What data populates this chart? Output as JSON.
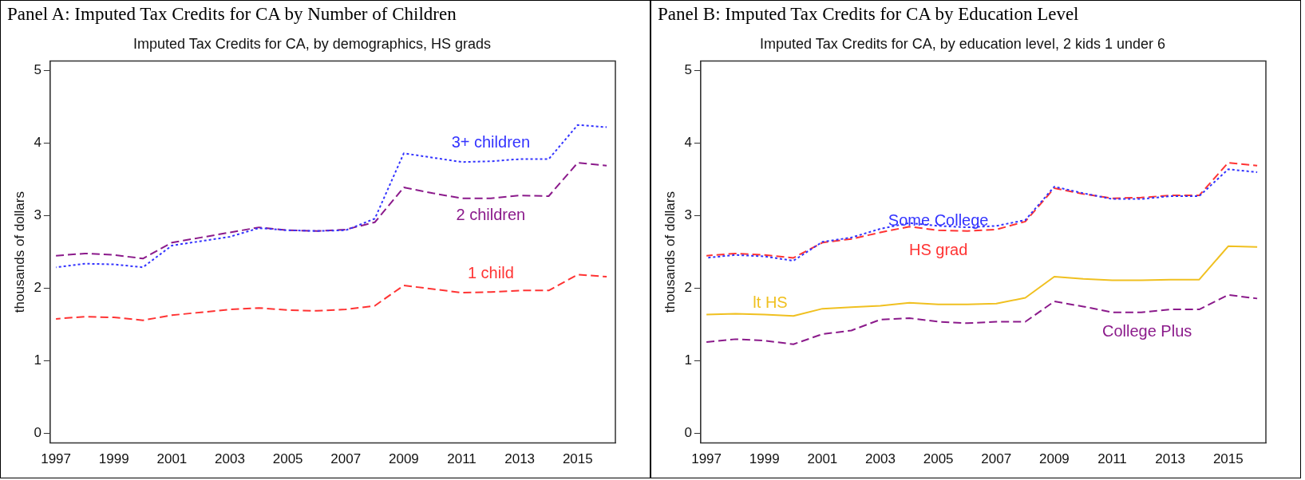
{
  "chart_data": [
    {
      "type": "line",
      "title": "Panel A: Imputed Tax Credits for CA by Number of Children",
      "subtitle": "Imputed Tax Credits for CA, by demographics, HS grads",
      "ylabel": "thousands of dollars",
      "x": [
        1997,
        1998,
        1999,
        2000,
        2001,
        2002,
        2003,
        2004,
        2005,
        2006,
        2007,
        2008,
        2009,
        2010,
        2011,
        2012,
        2013,
        2014,
        2015,
        2016
      ],
      "series": [
        {
          "name": "3+ children",
          "color": "#3333ff",
          "line_style": "dotted",
          "values": [
            2.29,
            2.34,
            2.33,
            2.29,
            2.59,
            2.65,
            2.71,
            2.83,
            2.8,
            2.79,
            2.8,
            2.96,
            3.86,
            3.8,
            3.74,
            3.75,
            3.78,
            3.78,
            4.25,
            4.22
          ]
        },
        {
          "name": "2 children",
          "color": "#8b1a8b",
          "line_style": "dashed",
          "values": [
            2.45,
            2.48,
            2.46,
            2.41,
            2.63,
            2.7,
            2.77,
            2.84,
            2.8,
            2.79,
            2.81,
            2.91,
            3.39,
            3.31,
            3.24,
            3.24,
            3.28,
            3.27,
            3.73,
            3.69
          ]
        },
        {
          "name": "1 child",
          "color": "#ff3333",
          "line_style": "dashed",
          "values": [
            1.58,
            1.61,
            1.6,
            1.56,
            1.63,
            1.67,
            1.71,
            1.73,
            1.7,
            1.69,
            1.71,
            1.76,
            2.04,
            1.99,
            1.94,
            1.95,
            1.97,
            1.97,
            2.19,
            2.16
          ]
        }
      ],
      "xlim": [
        1996.8,
        2016.3
      ],
      "xticks": [
        1997,
        1999,
        2001,
        2003,
        2005,
        2007,
        2009,
        2011,
        2013,
        2015
      ],
      "ylim": [
        -0.13,
        5.13
      ],
      "yticks": [
        0,
        1,
        2,
        3,
        4,
        5
      ],
      "grid": false,
      "legend": false,
      "marker": "none"
    },
    {
      "type": "line",
      "title": "Panel B: Imputed Tax Credits for CA by Education Level",
      "subtitle": "Imputed Tax Credits for CA, by education level, 2 kids 1 under 6",
      "ylabel": "thousands of dollars",
      "x": [
        1997,
        1998,
        1999,
        2000,
        2001,
        2002,
        2003,
        2004,
        2005,
        2006,
        2007,
        2008,
        2009,
        2010,
        2011,
        2012,
        2013,
        2014,
        2015,
        2016
      ],
      "series": [
        {
          "name": "Some College",
          "color": "#3333ff",
          "line_style": "dotted",
          "values": [
            2.42,
            2.46,
            2.44,
            2.38,
            2.64,
            2.7,
            2.82,
            2.9,
            2.86,
            2.84,
            2.86,
            2.94,
            3.4,
            3.31,
            3.23,
            3.23,
            3.27,
            3.27,
            3.64,
            3.6
          ]
        },
        {
          "name": "HS grad",
          "color": "#ff3333",
          "line_style": "dashed",
          "values": [
            2.45,
            2.48,
            2.46,
            2.42,
            2.63,
            2.68,
            2.77,
            2.85,
            2.8,
            2.79,
            2.81,
            2.92,
            3.38,
            3.3,
            3.24,
            3.25,
            3.28,
            3.28,
            3.73,
            3.69
          ]
        },
        {
          "name": "lt HS",
          "color": "#f0c020",
          "line_style": "solid",
          "values": [
            1.64,
            1.65,
            1.64,
            1.62,
            1.72,
            1.74,
            1.76,
            1.8,
            1.78,
            1.78,
            1.79,
            1.87,
            2.16,
            2.13,
            2.11,
            2.11,
            2.12,
            2.12,
            2.58,
            2.57
          ]
        },
        {
          "name": "College Plus",
          "color": "#8b1a8b",
          "line_style": "dashed",
          "values": [
            1.26,
            1.3,
            1.28,
            1.23,
            1.37,
            1.42,
            1.57,
            1.59,
            1.54,
            1.52,
            1.54,
            1.54,
            1.82,
            1.75,
            1.67,
            1.67,
            1.71,
            1.71,
            1.91,
            1.86
          ]
        }
      ],
      "xlim": [
        1996.8,
        2016.3
      ],
      "xticks": [
        1997,
        1999,
        2001,
        2003,
        2005,
        2007,
        2009,
        2011,
        2013,
        2015
      ],
      "ylim": [
        -0.13,
        5.13
      ],
      "yticks": [
        0,
        1,
        2,
        3,
        4,
        5
      ],
      "grid": false,
      "legend": false,
      "marker": "none"
    }
  ]
}
